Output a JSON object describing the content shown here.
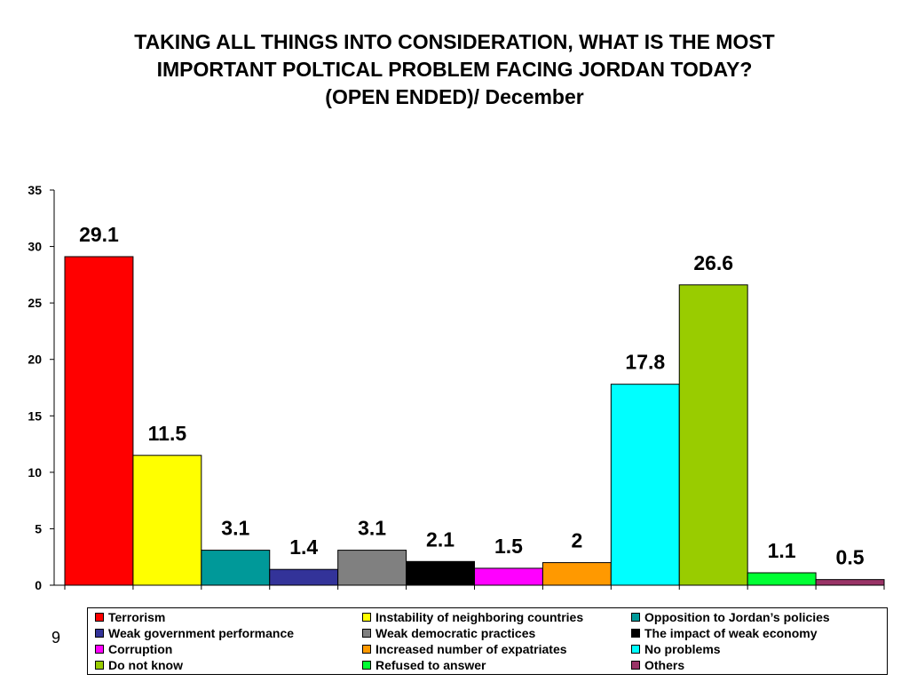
{
  "title_lines": [
    "TAKING ALL THINGS INTO CONSIDERATION, WHAT IS THE MOST",
    "IMPORTANT POLTICAL  PROBLEM FACING JORDAN TODAY?",
    "(OPEN ENDED)/ December"
  ],
  "page_number": "9",
  "chart_data": {
    "type": "bar",
    "categories": [
      "Terrorism",
      "Instability of neighboring countries",
      "Opposition to Jordan’s policies",
      "Weak government performance",
      "Weak democratic practices",
      "The impact of weak economy",
      "Corruption",
      "Increased number of expatriates",
      "No problems",
      "Do not know",
      "Refused to answer",
      "Others"
    ],
    "values": [
      29.1,
      11.5,
      3.1,
      1.4,
      3.1,
      2.1,
      1.5,
      2,
      17.8,
      26.6,
      1.1,
      0.5
    ],
    "data_labels": [
      "29.1",
      "11.5",
      "3.1",
      "1.4",
      "3.1",
      "2.1",
      "1.5",
      "2",
      "17.8",
      "26.6",
      "1.1",
      "0.5"
    ],
    "colors": [
      "#ff0000",
      "#ffff00",
      "#009999",
      "#333399",
      "#808080",
      "#000000",
      "#ff00ff",
      "#ff9900",
      "#00ffff",
      "#99cc00",
      "#00ff33",
      "#993366"
    ],
    "ylim": [
      0,
      35
    ],
    "yticks": [
      "0",
      "5",
      "10",
      "15",
      "20",
      "25",
      "30",
      "35"
    ],
    "grid": false,
    "legend_position": "bottom"
  }
}
